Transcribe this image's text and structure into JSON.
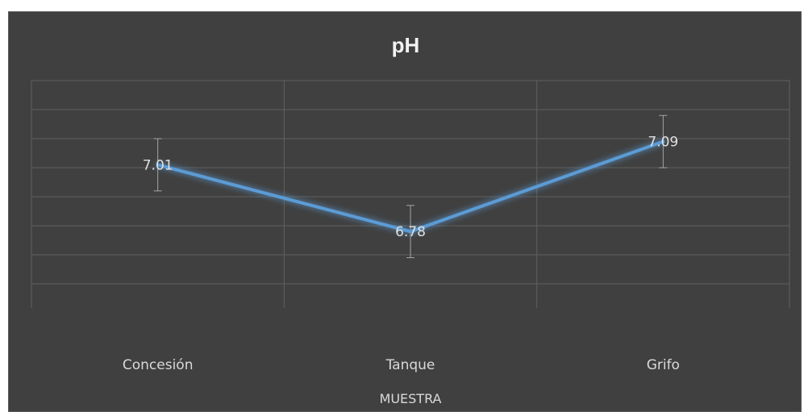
{
  "chart_data": {
    "type": "line",
    "title": "pH",
    "xlabel": "MUESTRA",
    "ylabel": "",
    "categories": [
      "Concesión",
      "Tanque",
      "Grifo"
    ],
    "series": [
      {
        "values": [
          7.01,
          6.78,
          7.09
        ],
        "error": [
          0.09,
          0.09,
          0.09
        ]
      }
    ],
    "ylim": [
      6.6,
      7.3
    ],
    "grid": true,
    "colors": {
      "background": "#404040",
      "line": "#5b9bd5",
      "grid": "#5f5f5f",
      "text": "#d9d9d9"
    }
  }
}
